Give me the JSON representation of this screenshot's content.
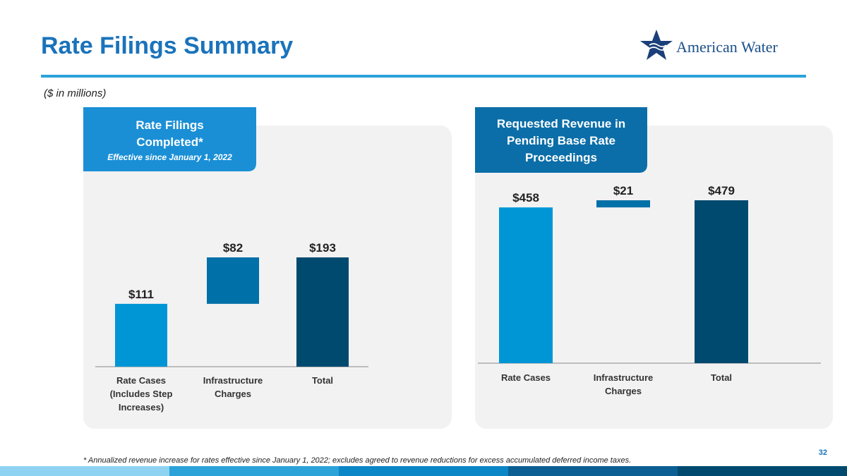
{
  "title": "Rate Filings Summary",
  "logo": "American Water",
  "subtitle": "($ in millions)",
  "footnote": "* Annualized revenue increase for rates effective since January 1, 2022; excludes agreed to revenue reductions for excess accumulated deferred income taxes.",
  "page_number": "32",
  "chart_data": [
    {
      "type": "waterfall",
      "title": "Rate Filings Completed*",
      "subtitle": "Effective since January 1, 2022",
      "categories": [
        "Rate Cases (Includes Step Increases)",
        "Infrastructure Charges",
        "Total"
      ],
      "values": [
        111,
        82,
        193
      ],
      "value_labels": [
        "$111",
        "$82",
        "$193"
      ],
      "colors": [
        "#0096d6",
        "#0070a8",
        "#004a70"
      ]
    },
    {
      "type": "waterfall",
      "title": "Requested Revenue in Pending Base Rate Proceedings",
      "categories": [
        "Rate Cases",
        "Infrastructure Charges",
        "Total"
      ],
      "values": [
        458,
        21,
        479
      ],
      "value_labels": [
        "$458",
        "$21",
        "$479"
      ],
      "colors": [
        "#0096d6",
        "#0070a8",
        "#004a70"
      ]
    }
  ]
}
